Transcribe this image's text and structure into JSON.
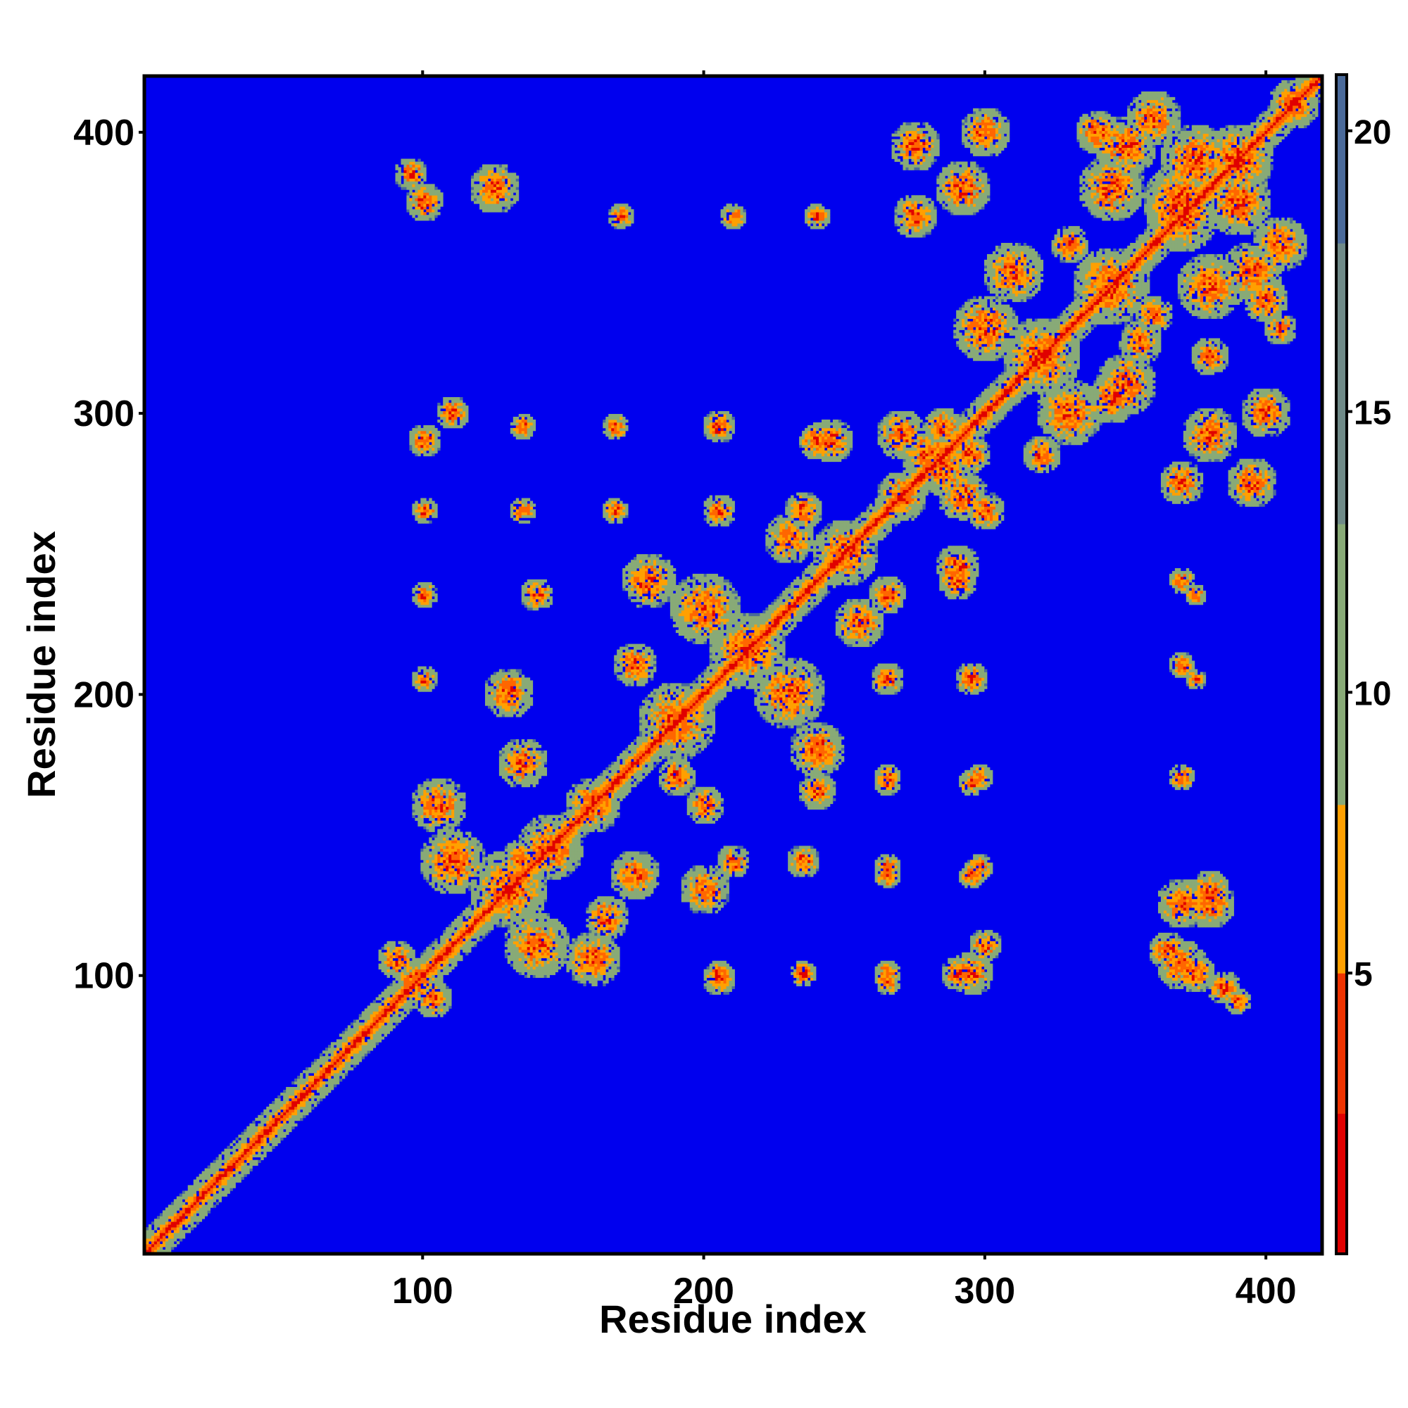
{
  "chart_data": {
    "type": "heatmap",
    "title": "",
    "xlabel": "Residue index",
    "ylabel": "Residue index",
    "n_residues": 420,
    "xlim": [
      1,
      420
    ],
    "ylim": [
      1,
      420
    ],
    "x_ticks": [
      100,
      200,
      300,
      400
    ],
    "y_ticks": [
      100,
      200,
      300,
      400
    ],
    "x_tick_labels": [
      "100",
      "200",
      "300",
      "400"
    ],
    "y_tick_labels": [
      "100",
      "200",
      "300",
      "400"
    ],
    "colorbar": {
      "range": [
        0,
        21
      ],
      "ticks": [
        5,
        10,
        15,
        20
      ],
      "tick_labels": [
        "5",
        "10",
        "15",
        "20"
      ],
      "cutoff": 8,
      "colors": [
        "#e00000",
        "#ff6600",
        "#ffa000",
        "#88aa77",
        "#4a6a9a",
        "#0000ee"
      ]
    },
    "background_color": "#0000ee",
    "diagonal": {
      "color": "#e00000",
      "halo_color": "#ff7a00",
      "outer_color": "#9bb08a"
    },
    "contact_blobs": [
      [
        97,
        97,
        9
      ],
      [
        103,
        91,
        7
      ],
      [
        90,
        105,
        7
      ],
      [
        130,
        130,
        14
      ],
      [
        145,
        145,
        12
      ],
      [
        160,
        160,
        10
      ],
      [
        110,
        140,
        12
      ],
      [
        140,
        110,
        12
      ],
      [
        105,
        160,
        10
      ],
      [
        160,
        105,
        10
      ],
      [
        135,
        175,
        9
      ],
      [
        175,
        135,
        9
      ],
      [
        130,
        200,
        9
      ],
      [
        200,
        130,
        9
      ],
      [
        190,
        190,
        14
      ],
      [
        215,
        215,
        14
      ],
      [
        230,
        200,
        13
      ],
      [
        200,
        230,
        13
      ],
      [
        240,
        180,
        10
      ],
      [
        180,
        240,
        10
      ],
      [
        250,
        250,
        12
      ],
      [
        270,
        270,
        9
      ],
      [
        285,
        280,
        10
      ],
      [
        280,
        285,
        10
      ],
      [
        295,
        285,
        7
      ],
      [
        285,
        295,
        7
      ],
      [
        320,
        320,
        14
      ],
      [
        345,
        345,
        14
      ],
      [
        370,
        370,
        13
      ],
      [
        390,
        390,
        13
      ],
      [
        410,
        410,
        9
      ],
      [
        370,
        375,
        14
      ],
      [
        375,
        390,
        13
      ],
      [
        390,
        375,
        12
      ],
      [
        345,
        380,
        12
      ],
      [
        380,
        345,
        12
      ],
      [
        350,
        395,
        11
      ],
      [
        395,
        350,
        11
      ],
      [
        360,
        405,
        10
      ],
      [
        405,
        360,
        10
      ],
      [
        330,
        300,
        12
      ],
      [
        300,
        330,
        12
      ],
      [
        310,
        350,
        11
      ],
      [
        350,
        310,
        11
      ],
      [
        300,
        400,
        9
      ],
      [
        400,
        300,
        9
      ],
      [
        292,
        270,
        9
      ],
      [
        270,
        292,
        9
      ],
      [
        292,
        380,
        10
      ],
      [
        380,
        292,
        10
      ],
      [
        275,
        395,
        9
      ],
      [
        395,
        275,
        9
      ],
      [
        100,
        375,
        7
      ],
      [
        375,
        100,
        7
      ],
      [
        125,
        380,
        9
      ],
      [
        380,
        125,
        9
      ],
      [
        95,
        385,
        6
      ],
      [
        385,
        95,
        6
      ],
      [
        170,
        370,
        5
      ],
      [
        370,
        170,
        5
      ],
      [
        210,
        370,
        5
      ],
      [
        370,
        210,
        5
      ],
      [
        240,
        370,
        5
      ],
      [
        370,
        240,
        5
      ],
      [
        275,
        370,
        8
      ],
      [
        370,
        275,
        8
      ],
      [
        100,
        290,
        6
      ],
      [
        290,
        100,
        6
      ],
      [
        110,
        300,
        6
      ],
      [
        300,
        110,
        6
      ],
      [
        135,
        295,
        5
      ],
      [
        295,
        135,
        5
      ],
      [
        168,
        295,
        5
      ],
      [
        295,
        168,
        5
      ],
      [
        205,
        295,
        6
      ],
      [
        295,
        205,
        6
      ],
      [
        240,
        290,
        7
      ],
      [
        290,
        240,
        7
      ],
      [
        100,
        265,
        5
      ],
      [
        265,
        100,
        5
      ],
      [
        135,
        265,
        5
      ],
      [
        265,
        135,
        5
      ],
      [
        168,
        265,
        5
      ],
      [
        265,
        168,
        5
      ],
      [
        100,
        235,
        5
      ],
      [
        235,
        100,
        5
      ],
      [
        140,
        235,
        6
      ],
      [
        235,
        140,
        6
      ],
      [
        100,
        205,
        5
      ],
      [
        205,
        100,
        5
      ],
      [
        265,
        235,
        7
      ],
      [
        235,
        265,
        7
      ],
      [
        265,
        205,
        6
      ],
      [
        205,
        265,
        6
      ],
      [
        295,
        205,
        5
      ],
      [
        205,
        295,
        5
      ],
      [
        290,
        245,
        8
      ],
      [
        245,
        290,
        8
      ],
      [
        375,
        235,
        4
      ],
      [
        375,
        205,
        4
      ],
      [
        370,
        125,
        9
      ],
      [
        370,
        103,
        9
      ],
      [
        380,
        130,
        7
      ],
      [
        365,
        108,
        7
      ],
      [
        390,
        90,
        5
      ],
      [
        295,
        100,
        8
      ],
      [
        265,
        97,
        5
      ],
      [
        235,
        100,
        5
      ],
      [
        298,
        170,
        5
      ],
      [
        298,
        138,
        5
      ],
      [
        265,
        138,
        5
      ],
      [
        265,
        170,
        5
      ],
      [
        205,
        98,
        6
      ],
      [
        210,
        140,
        6
      ],
      [
        135,
        140,
        8
      ],
      [
        165,
        120,
        8
      ],
      [
        200,
        160,
        7
      ],
      [
        190,
        170,
        7
      ],
      [
        175,
        210,
        8
      ],
      [
        240,
        165,
        7
      ],
      [
        255,
        225,
        9
      ],
      [
        230,
        255,
        9
      ],
      [
        300,
        265,
        7
      ],
      [
        320,
        285,
        7
      ],
      [
        345,
        305,
        9
      ],
      [
        355,
        325,
        8
      ],
      [
        380,
        320,
        7
      ],
      [
        400,
        340,
        8
      ],
      [
        405,
        330,
        6
      ],
      [
        340,
        400,
        8
      ],
      [
        360,
        335,
        7
      ],
      [
        330,
        360,
        7
      ]
    ]
  }
}
